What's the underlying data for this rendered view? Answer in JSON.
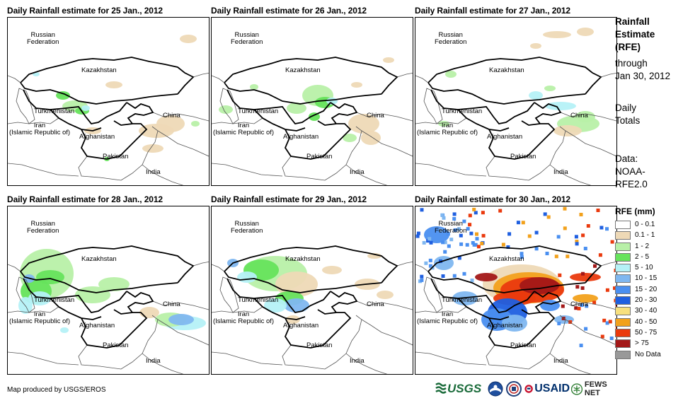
{
  "panels": [
    {
      "title": "Daily Rainfall estimate for 25 Jan., 2012"
    },
    {
      "title": "Daily Rainfall estimate for 26 Jan., 2012"
    },
    {
      "title": "Daily Rainfall estimate for 27 Jan., 2012"
    },
    {
      "title": "Daily Rainfall estimate for 28 Jan., 2012"
    },
    {
      "title": "Daily Rainfall estimate for 29 Jan., 2012"
    },
    {
      "title": "Daily Rainfall estimate for 30 Jan., 2012"
    }
  ],
  "map_labels": {
    "russia": "Russian\nFederation",
    "kazakhstan": "Kazakhstan",
    "turkmenistan": "Turkmenistan",
    "iran": "Iran\n(Islamic Republic of)",
    "afghanistan": "Afghanistan",
    "pakistan": "Pakistan",
    "china": "China",
    "india": "India"
  },
  "sidebar": {
    "line1": "Rainfall",
    "line2": "Estimate",
    "line3": "(RFE)",
    "line4": "through",
    "line5": "Jan 30, 2012",
    "line6": "Daily",
    "line7": "Totals",
    "line8": "Data:",
    "line9": "NOAA-",
    "line10": "RFE2.0"
  },
  "legend": {
    "title": "RFE (mm)",
    "items": [
      {
        "label": "0 - 0.1",
        "color": "#ffffff"
      },
      {
        "label": "0.1 - 1",
        "color": "#eed9b6"
      },
      {
        "label": "1 - 2",
        "color": "#b8f0a8"
      },
      {
        "label": "2 - 5",
        "color": "#66e35c"
      },
      {
        "label": "5 - 10",
        "color": "#b5f1f7"
      },
      {
        "label": "10 - 15",
        "color": "#7fb7f0"
      },
      {
        "label": "15 - 20",
        "color": "#4a8ff0"
      },
      {
        "label": "20 - 30",
        "color": "#1f5fe0"
      },
      {
        "label": "30 - 40",
        "color": "#f7e07e"
      },
      {
        "label": "40 - 50",
        "color": "#f2a11c"
      },
      {
        "label": "50 - 75",
        "color": "#ea3a0e"
      },
      {
        "label": "> 75",
        "color": "#a31818"
      },
      {
        "label": "No Data",
        "color": "#999999"
      }
    ]
  },
  "footer": {
    "credit": "Map produced by USGS/EROS"
  },
  "logos": {
    "usgs": "USGS",
    "usaid": "USAID",
    "fewsnet": "FEWS NET"
  }
}
